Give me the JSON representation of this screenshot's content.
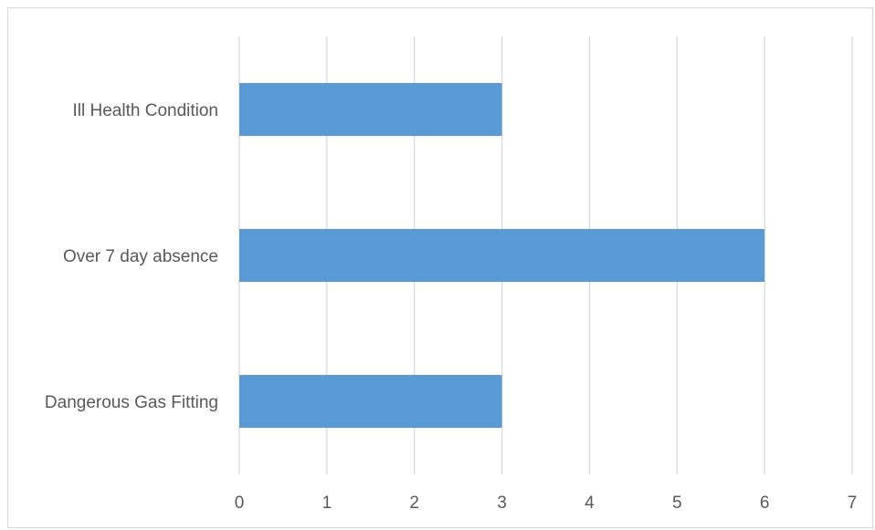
{
  "chart_data": {
    "type": "bar",
    "orientation": "horizontal",
    "title": "",
    "xlabel": "",
    "ylabel": "",
    "categories": [
      "Ill Health Condition",
      "Over 7 day absence",
      "Dangerous Gas Fitting"
    ],
    "values": [
      3,
      6,
      3
    ],
    "xlim": [
      0,
      7
    ],
    "x_ticks": [
      "0",
      "1",
      "2",
      "3",
      "4",
      "5",
      "6",
      "7"
    ],
    "grid": "vertical",
    "legend": "none",
    "colors": {
      "bar": "#5b9bd5",
      "grid": "#d9d9d9",
      "text": "#595959"
    }
  }
}
